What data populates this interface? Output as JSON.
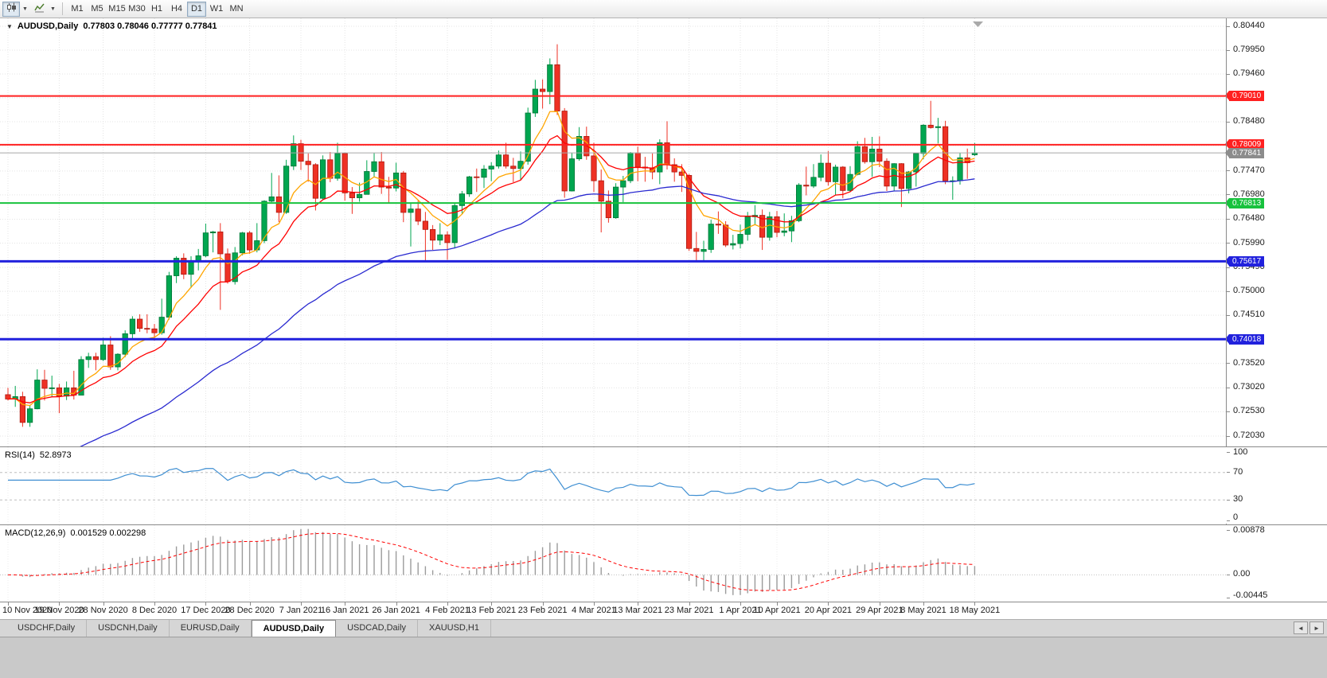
{
  "toolbar": {
    "icons": [
      {
        "name": "candlestick-chart-icon"
      },
      {
        "name": "dropdown-caret-icon"
      },
      {
        "name": "indicators-icon"
      },
      {
        "name": "dropdown-caret-icon"
      }
    ],
    "timeframes": [
      "M1",
      "M5",
      "M15",
      "M30",
      "H1",
      "H4",
      "D1",
      "W1",
      "MN"
    ],
    "active_timeframe": "D1"
  },
  "chart": {
    "marker": "▼",
    "symbol_title": "AUDUSD,Daily",
    "ohlc": "0.77803 0.78046 0.77777 0.77841"
  },
  "chart_data": {
    "type": "candlestick",
    "symbol": "AUDUSD",
    "timeframe": "Daily",
    "ohlc_current": {
      "open": 0.77803,
      "high": 0.78046,
      "low": 0.77777,
      "close": 0.77841
    },
    "bull_color": "#00a650",
    "bull_stroke": "#007636",
    "bear_color": "#ee3124",
    "bear_stroke": "#ad1a10",
    "y_axis": {
      "min": 0.7203,
      "max": 0.8044,
      "ticks": [
        "0.80440",
        "0.79950",
        "0.79460",
        "0.78970",
        "0.78480",
        "0.77990",
        "0.77470",
        "0.76980",
        "0.76480",
        "0.75990",
        "0.75490",
        "0.75000",
        "0.74510",
        "0.74010",
        "0.73520",
        "0.73020",
        "0.72530",
        "0.72030"
      ]
    },
    "x_labels": [
      {
        "i": 0,
        "t": "10 Nov 2020"
      },
      {
        "i": 7,
        "t": "19 Nov 2020"
      },
      {
        "i": 13,
        "t": "28 Nov 2020"
      },
      {
        "i": 20,
        "t": "8 Dec 2020"
      },
      {
        "i": 27,
        "t": "17 Dec 2020"
      },
      {
        "i": 33,
        "t": "28 Dec 2020"
      },
      {
        "i": 40,
        "t": "7 Jan 2021"
      },
      {
        "i": 46,
        "t": "16 Jan 2021"
      },
      {
        "i": 53,
        "t": "26 Jan 2021"
      },
      {
        "i": 60,
        "t": "4 Feb 2021"
      },
      {
        "i": 66,
        "t": "13 Feb 2021"
      },
      {
        "i": 73,
        "t": "23 Feb 2021"
      },
      {
        "i": 80,
        "t": "4 Mar 2021"
      },
      {
        "i": 86,
        "t": "13 Mar 2021"
      },
      {
        "i": 93,
        "t": "23 Mar 2021"
      },
      {
        "i": 100,
        "t": "1 Apr 2021"
      },
      {
        "i": 105,
        "t": "10 Apr 2021"
      },
      {
        "i": 112,
        "t": "20 Apr 2021"
      },
      {
        "i": 119,
        "t": "29 Apr 2021"
      },
      {
        "i": 125,
        "t": "8 May 2021"
      },
      {
        "i": 132,
        "t": "18 May 2021"
      }
    ],
    "candles": [
      [
        0.7288,
        0.7302,
        0.7276,
        0.7279
      ],
      [
        0.7279,
        0.7306,
        0.7263,
        0.7284
      ],
      [
        0.7284,
        0.7294,
        0.7222,
        0.7231
      ],
      [
        0.7231,
        0.7267,
        0.7222,
        0.7259
      ],
      [
        0.7259,
        0.734,
        0.7258,
        0.7318
      ],
      [
        0.7318,
        0.7339,
        0.7276,
        0.7301
      ],
      [
        0.7301,
        0.7327,
        0.7283,
        0.7302
      ],
      [
        0.7302,
        0.731,
        0.725,
        0.7285
      ],
      [
        0.7285,
        0.7315,
        0.7277,
        0.7302
      ],
      [
        0.7302,
        0.7337,
        0.7278,
        0.7287
      ],
      [
        0.7287,
        0.7367,
        0.7287,
        0.736
      ],
      [
        0.736,
        0.7374,
        0.7343,
        0.7366
      ],
      [
        0.7366,
        0.7374,
        0.7338,
        0.736
      ],
      [
        0.736,
        0.7405,
        0.7357,
        0.739
      ],
      [
        0.739,
        0.7408,
        0.7339,
        0.7345
      ],
      [
        0.7345,
        0.7373,
        0.7338,
        0.7371
      ],
      [
        0.7371,
        0.742,
        0.7365,
        0.7413
      ],
      [
        0.7413,
        0.7449,
        0.7404,
        0.7443
      ],
      [
        0.7443,
        0.7453,
        0.7417,
        0.7424
      ],
      [
        0.7424,
        0.7453,
        0.7414,
        0.7423
      ],
      [
        0.7423,
        0.7433,
        0.7399,
        0.7415
      ],
      [
        0.7415,
        0.7485,
        0.7411,
        0.7447
      ],
      [
        0.7447,
        0.754,
        0.7442,
        0.7532
      ],
      [
        0.7532,
        0.7572,
        0.7517,
        0.7568
      ],
      [
        0.7568,
        0.7578,
        0.7525,
        0.7535
      ],
      [
        0.7535,
        0.7572,
        0.7507,
        0.7562
      ],
      [
        0.7562,
        0.7587,
        0.7543,
        0.7573
      ],
      [
        0.7573,
        0.7639,
        0.757,
        0.762
      ],
      [
        0.762,
        0.7624,
        0.758,
        0.7622
      ],
      [
        0.7622,
        0.764,
        0.7462,
        0.7577
      ],
      [
        0.7577,
        0.7588,
        0.7516,
        0.752
      ],
      [
        0.752,
        0.7591,
        0.7514,
        0.7579
      ],
      [
        0.7579,
        0.7622,
        0.7574,
        0.762
      ],
      [
        0.762,
        0.7624,
        0.7577,
        0.7585
      ],
      [
        0.7585,
        0.764,
        0.758,
        0.7604
      ],
      [
        0.7604,
        0.7687,
        0.7599,
        0.7685
      ],
      [
        0.7685,
        0.7743,
        0.7683,
        0.7694
      ],
      [
        0.7694,
        0.7738,
        0.7642,
        0.7662
      ],
      [
        0.7662,
        0.777,
        0.7659,
        0.7757
      ],
      [
        0.7757,
        0.782,
        0.7749,
        0.7803
      ],
      [
        0.7803,
        0.7811,
        0.7749,
        0.7767
      ],
      [
        0.7767,
        0.7783,
        0.7725,
        0.776
      ],
      [
        0.776,
        0.7763,
        0.7666,
        0.7691
      ],
      [
        0.7691,
        0.7779,
        0.7689,
        0.777
      ],
      [
        0.777,
        0.7786,
        0.7724,
        0.7732
      ],
      [
        0.7732,
        0.7805,
        0.7727,
        0.7783
      ],
      [
        0.7783,
        0.7785,
        0.7686,
        0.7702
      ],
      [
        0.7702,
        0.7714,
        0.7659,
        0.7692
      ],
      [
        0.7692,
        0.7723,
        0.7684,
        0.7699
      ],
      [
        0.7699,
        0.7769,
        0.7699,
        0.7746
      ],
      [
        0.7746,
        0.7784,
        0.7735,
        0.7766
      ],
      [
        0.7766,
        0.7786,
        0.77,
        0.7714
      ],
      [
        0.7714,
        0.7735,
        0.7682,
        0.7712
      ],
      [
        0.7712,
        0.7764,
        0.7705,
        0.7743
      ],
      [
        0.7743,
        0.7747,
        0.7642,
        0.7662
      ],
      [
        0.7662,
        0.7682,
        0.7592,
        0.7669
      ],
      [
        0.7669,
        0.7686,
        0.7636,
        0.7644
      ],
      [
        0.7644,
        0.7663,
        0.7563,
        0.7627
      ],
      [
        0.7627,
        0.7636,
        0.7585,
        0.7605
      ],
      [
        0.7605,
        0.764,
        0.7595,
        0.7616
      ],
      [
        0.7616,
        0.7623,
        0.7565,
        0.76
      ],
      [
        0.76,
        0.768,
        0.7588,
        0.7676
      ],
      [
        0.7676,
        0.7706,
        0.7659,
        0.77
      ],
      [
        0.77,
        0.7737,
        0.7694,
        0.7735
      ],
      [
        0.7735,
        0.7752,
        0.7704,
        0.7734
      ],
      [
        0.7734,
        0.7759,
        0.7712,
        0.7751
      ],
      [
        0.7751,
        0.7765,
        0.7726,
        0.7757
      ],
      [
        0.7757,
        0.7789,
        0.7752,
        0.778
      ],
      [
        0.778,
        0.7805,
        0.7752,
        0.7757
      ],
      [
        0.7757,
        0.7774,
        0.7724,
        0.7752
      ],
      [
        0.7752,
        0.7787,
        0.7728,
        0.7767
      ],
      [
        0.7767,
        0.7877,
        0.776,
        0.7866
      ],
      [
        0.7866,
        0.7934,
        0.7858,
        0.7915
      ],
      [
        0.7915,
        0.7935,
        0.7875,
        0.791
      ],
      [
        0.791,
        0.7978,
        0.7884,
        0.7965
      ],
      [
        0.7965,
        0.8007,
        0.7862,
        0.787
      ],
      [
        0.787,
        0.7876,
        0.7692,
        0.7706
      ],
      [
        0.7706,
        0.7784,
        0.7705,
        0.7772
      ],
      [
        0.7772,
        0.7837,
        0.7768,
        0.7818
      ],
      [
        0.7818,
        0.7838,
        0.777,
        0.7778
      ],
      [
        0.7778,
        0.7805,
        0.7704,
        0.7727
      ],
      [
        0.7727,
        0.775,
        0.7621,
        0.7685
      ],
      [
        0.7685,
        0.7707,
        0.7641,
        0.7651
      ],
      [
        0.7651,
        0.7722,
        0.7649,
        0.7714
      ],
      [
        0.7714,
        0.7737,
        0.7683,
        0.7727
      ],
      [
        0.7727,
        0.7786,
        0.7722,
        0.7784
      ],
      [
        0.7784,
        0.7797,
        0.7726,
        0.7755
      ],
      [
        0.7755,
        0.7776,
        0.7725,
        0.7753
      ],
      [
        0.7753,
        0.7783,
        0.773,
        0.7745
      ],
      [
        0.7745,
        0.7812,
        0.772,
        0.7805
      ],
      [
        0.7805,
        0.7849,
        0.775,
        0.776
      ],
      [
        0.776,
        0.7773,
        0.7725,
        0.7745
      ],
      [
        0.7745,
        0.7761,
        0.7704,
        0.7738
      ],
      [
        0.7738,
        0.7741,
        0.7583,
        0.7588
      ],
      [
        0.7588,
        0.7622,
        0.7562,
        0.7582
      ],
      [
        0.7582,
        0.7604,
        0.7562,
        0.7586
      ],
      [
        0.7586,
        0.7647,
        0.7579,
        0.7638
      ],
      [
        0.7638,
        0.7664,
        0.7618,
        0.7636
      ],
      [
        0.7636,
        0.7644,
        0.7591,
        0.7595
      ],
      [
        0.7595,
        0.7616,
        0.7586,
        0.7598
      ],
      [
        0.7598,
        0.7637,
        0.7588,
        0.7617
      ],
      [
        0.7617,
        0.7663,
        0.7604,
        0.7653
      ],
      [
        0.7653,
        0.7677,
        0.7637,
        0.7656
      ],
      [
        0.7656,
        0.7668,
        0.7585,
        0.7611
      ],
      [
        0.7611,
        0.7663,
        0.7604,
        0.7653
      ],
      [
        0.7653,
        0.7665,
        0.7611,
        0.7621
      ],
      [
        0.7621,
        0.766,
        0.7613,
        0.7624
      ],
      [
        0.7624,
        0.7655,
        0.7601,
        0.7645
      ],
      [
        0.7645,
        0.7722,
        0.7642,
        0.7718
      ],
      [
        0.7718,
        0.7756,
        0.7697,
        0.7716
      ],
      [
        0.7716,
        0.7761,
        0.7712,
        0.7734
      ],
      [
        0.7734,
        0.7781,
        0.7726,
        0.7763
      ],
      [
        0.7763,
        0.7788,
        0.7717,
        0.7725
      ],
      [
        0.7725,
        0.776,
        0.7697,
        0.7755
      ],
      [
        0.7755,
        0.7757,
        0.7691,
        0.7707
      ],
      [
        0.7707,
        0.7757,
        0.7705,
        0.774
      ],
      [
        0.774,
        0.7808,
        0.7738,
        0.7797
      ],
      [
        0.7797,
        0.7815,
        0.7762,
        0.7766
      ],
      [
        0.7766,
        0.7817,
        0.7735,
        0.7792
      ],
      [
        0.7792,
        0.7818,
        0.7755,
        0.7767
      ],
      [
        0.7767,
        0.7773,
        0.7706,
        0.7716
      ],
      [
        0.7716,
        0.7763,
        0.7706,
        0.7762
      ],
      [
        0.7762,
        0.7763,
        0.7673,
        0.7711
      ],
      [
        0.7711,
        0.7747,
        0.7701,
        0.7745
      ],
      [
        0.7745,
        0.7784,
        0.7715,
        0.7783
      ],
      [
        0.7783,
        0.7843,
        0.7771,
        0.7841
      ],
      [
        0.7841,
        0.7891,
        0.7834,
        0.7836
      ],
      [
        0.7836,
        0.7856,
        0.7804,
        0.7838
      ],
      [
        0.7838,
        0.785,
        0.772,
        0.7727
      ],
      [
        0.7727,
        0.7736,
        0.7688,
        0.7727
      ],
      [
        0.7727,
        0.7784,
        0.7719,
        0.7774
      ],
      [
        0.7774,
        0.7793,
        0.7731,
        0.7764
      ],
      [
        0.77803,
        0.78046,
        0.77777,
        0.77841
      ]
    ],
    "moving_averages": [
      {
        "name": "ma-fast",
        "period": 7,
        "color": "#ffa500"
      },
      {
        "name": "ma-medium",
        "period": 14,
        "color": "#ff0000"
      },
      {
        "name": "ma-slow",
        "period": 50,
        "color": "#2a2ad0",
        "seed": 0.712
      }
    ],
    "hlines": [
      {
        "price": 0.7901,
        "label": "0.79010",
        "color": "#ff2020",
        "tag": "#ff2020",
        "width": 2
      },
      {
        "price": 0.78009,
        "label": "0.78009",
        "color": "#ff2020",
        "tag": "#ff2020",
        "width": 2
      },
      {
        "price": 0.76813,
        "label": "0.76813",
        "color": "#17c23d",
        "tag": "#17c23d",
        "width": 2
      },
      {
        "price": 0.75617,
        "label": "0.75617",
        "color": "#2121dd",
        "tag": "#2121dd",
        "width": 3
      },
      {
        "price": 0.74018,
        "label": "0.74018",
        "color": "#2121dd",
        "tag": "#2121dd",
        "width": 3
      },
      {
        "price": 0.77841,
        "label": "0.77841",
        "color": "#a8a8a8",
        "tag": "#8c8c8c",
        "width": 1,
        "current": true
      }
    ],
    "rsi": {
      "period": 14,
      "levels": [
        70,
        30
      ],
      "axis": [
        100,
        70,
        30,
        0
      ],
      "color": "#3f8fd2",
      "current": 52.8973
    },
    "macd": {
      "fast": 12,
      "slow": 26,
      "signal": 9,
      "current_macd": 0.001529,
      "current_signal": 0.002298,
      "range": [
        -0.00445,
        0.00878
      ],
      "axis": [
        "0.00878",
        "0.00",
        "-0.00445"
      ],
      "histogram_color": "#9b9b9b",
      "signal_color": "#ff0000"
    }
  },
  "rsi_panel": {
    "label": "RSI(14)",
    "value": "52.8973"
  },
  "macd_panel": {
    "label": "MACD(12,26,9)",
    "values": "0.001529 0.002298"
  },
  "bottom_tabs": {
    "tabs": [
      {
        "label": "USDCHF,Daily",
        "active": false
      },
      {
        "label": "USDCNH,Daily",
        "active": false
      },
      {
        "label": "EURUSD,Daily",
        "active": false
      },
      {
        "label": "AUDUSD,Daily",
        "active": true
      },
      {
        "label": "USDCAD,Daily",
        "active": false
      },
      {
        "label": "XAUUSD,H1",
        "active": false
      }
    ],
    "scroll_left": "◄",
    "scroll_right": "►"
  }
}
